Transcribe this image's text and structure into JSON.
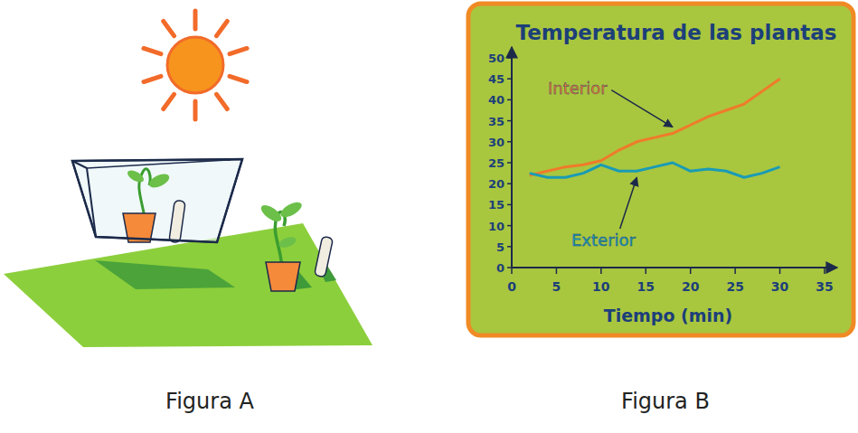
{
  "chart_data": {
    "type": "line",
    "title": "Temperatura de las plantas",
    "x_label": "Tiempo (min)",
    "x": [
      2,
      4,
      6,
      8,
      10,
      12,
      14,
      16,
      18,
      20,
      22,
      24,
      26,
      28,
      30
    ],
    "series": [
      {
        "name": "Interior",
        "color": "#f07a2a",
        "values": [
          22,
          23,
          24,
          24.5,
          25.5,
          28,
          30,
          31,
          32,
          34,
          36,
          37.5,
          39,
          42,
          45
        ]
      },
      {
        "name": "Exterior",
        "color": "#1a9bb5",
        "values": [
          22.5,
          21.5,
          21.5,
          22.5,
          24.5,
          23,
          23,
          24,
          25,
          23,
          23.5,
          23,
          21.5,
          22.5,
          24
        ]
      }
    ],
    "xlim": [
      0,
      35
    ],
    "xticks": [
      0,
      5,
      10,
      15,
      20,
      25,
      30,
      35
    ],
    "ylim": [
      0,
      50
    ],
    "yticks": [
      0,
      5,
      10,
      15,
      20,
      25,
      30,
      35,
      40,
      45,
      50
    ],
    "grid": false
  },
  "captions": [
    "Figura A",
    "Figura B"
  ]
}
